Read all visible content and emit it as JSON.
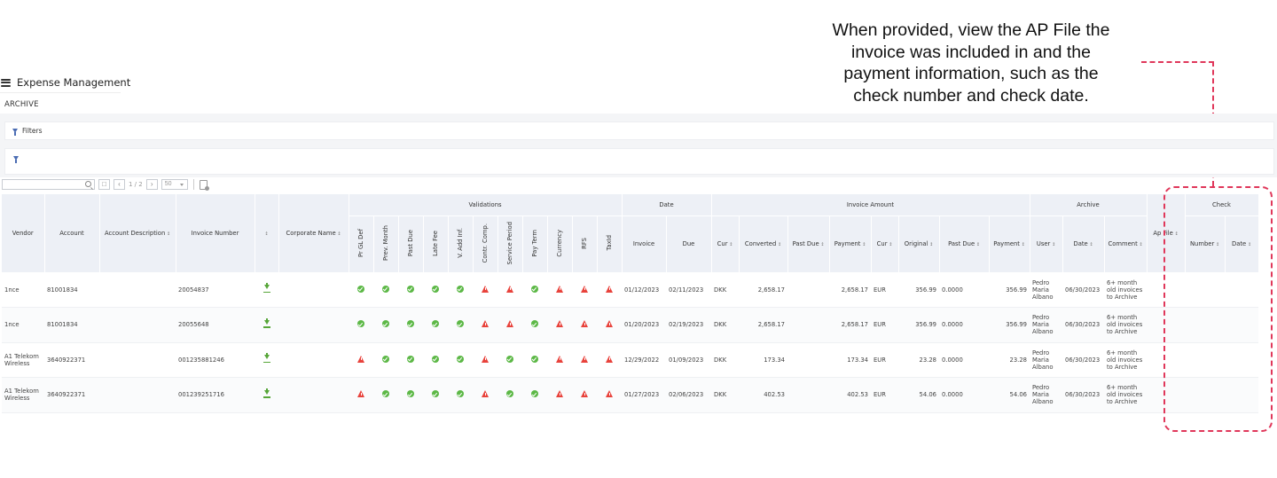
{
  "callout": {
    "lines": [
      "When provided, view the AP File the",
      "invoice was included in and the",
      "payment information, such as the",
      "check number and check date."
    ]
  },
  "app": {
    "title": "Expense Management",
    "section": "ARCHIVE"
  },
  "filters": {
    "label": "Filters"
  },
  "toolbar": {
    "page_info": "1 / 2",
    "page_size": "50"
  },
  "table": {
    "groups": {
      "validations": "Validations",
      "date": "Date",
      "invoice_amount": "Invoice Amount",
      "archive": "Archive",
      "check": "Check"
    },
    "headers": {
      "vendor": "Vendor",
      "account": "Account",
      "account_description": "Account Description",
      "invoice_number": "Invoice Number",
      "corporate_name": "Corporate Name",
      "v_pr_gl_def": "Pr GL Def",
      "v_prev_month": "Prev. Month",
      "v_past_due": "Past Due",
      "v_late_fee": "Late Fee",
      "v_add_inf": "V. Add Inf.",
      "v_contr_comp": "Contr. Comp.",
      "v_service_period": "Service Period",
      "v_pay_term": "Pay Term",
      "v_currency": "Currency",
      "v_rfs": "RFS",
      "v_taxid": "TaxId",
      "date_invoice": "Invoice",
      "date_due": "Due",
      "cur": "Cur",
      "converted": "Converted",
      "past_due": "Past Due",
      "payment": "Payment",
      "cur2": "Cur",
      "original": "Original",
      "past_due2": "Past Due",
      "payment2": "Payment",
      "user": "User",
      "archive_date": "Date",
      "comment": "Comment",
      "ap_file": "Ap File",
      "check_number": "Number",
      "check_date": "Date"
    },
    "rows": [
      {
        "vendor": "1nce",
        "account": "81001834",
        "account_description": "",
        "invoice_number": "20054837",
        "corporate_name": "",
        "validations": [
          "ok",
          "ok",
          "ok",
          "ok",
          "ok",
          "warn",
          "warn",
          "ok",
          "warn",
          "warn",
          "warn"
        ],
        "date_invoice": "01/12/2023",
        "date_due": "02/11/2023",
        "cur": "DKK",
        "converted": "2,658.17",
        "past_due": "",
        "payment": "2,658.17",
        "cur2": "EUR",
        "original": "356.99",
        "past_due2": "0.0000",
        "payment2": "356.99",
        "user": "Pedro Maria Albano",
        "archive_date": "06/30/2023",
        "comment": "6+ month old invoices to Archive",
        "ap_file": "",
        "check_number": "",
        "check_date": ""
      },
      {
        "vendor": "1nce",
        "account": "81001834",
        "account_description": "",
        "invoice_number": "20055648",
        "corporate_name": "",
        "validations": [
          "ok",
          "ok",
          "ok",
          "ok",
          "ok",
          "warn",
          "warn",
          "ok",
          "warn",
          "warn",
          "warn"
        ],
        "date_invoice": "01/20/2023",
        "date_due": "02/19/2023",
        "cur": "DKK",
        "converted": "2,658.17",
        "past_due": "",
        "payment": "2,658.17",
        "cur2": "EUR",
        "original": "356.99",
        "past_due2": "0.0000",
        "payment2": "356.99",
        "user": "Pedro Maria Albano",
        "archive_date": "06/30/2023",
        "comment": "6+ month old invoices to Archive",
        "ap_file": "",
        "check_number": "",
        "check_date": ""
      },
      {
        "vendor": "A1 Telekom Wireless",
        "account": "3640922371",
        "account_description": "",
        "invoice_number": "001235881246",
        "corporate_name": "",
        "validations": [
          "warn",
          "ok",
          "ok",
          "ok",
          "ok",
          "warn",
          "ok",
          "ok",
          "warn",
          "warn",
          "warn"
        ],
        "date_invoice": "12/29/2022",
        "date_due": "01/09/2023",
        "cur": "DKK",
        "converted": "173.34",
        "past_due": "",
        "payment": "173.34",
        "cur2": "EUR",
        "original": "23.28",
        "past_due2": "0.0000",
        "payment2": "23.28",
        "user": "Pedro Maria Albano",
        "archive_date": "06/30/2023",
        "comment": "6+ month old invoices to Archive",
        "ap_file": "",
        "check_number": "",
        "check_date": ""
      },
      {
        "vendor": "A1 Telekom Wireless",
        "account": "3640922371",
        "account_description": "",
        "invoice_number": "001239251716",
        "corporate_name": "",
        "validations": [
          "warn",
          "ok",
          "ok",
          "ok",
          "ok",
          "warn",
          "ok",
          "ok",
          "warn",
          "warn",
          "warn"
        ],
        "date_invoice": "01/27/2023",
        "date_due": "02/06/2023",
        "cur": "DKK",
        "converted": "402.53",
        "past_due": "",
        "payment": "402.53",
        "cur2": "EUR",
        "original": "54.06",
        "past_due2": "0.0000",
        "payment2": "54.06",
        "user": "Pedro Maria Albano",
        "archive_date": "06/30/2023",
        "comment": "6+ month old invoices to Archive",
        "ap_file": "",
        "check_number": "",
        "check_date": ""
      }
    ]
  },
  "colors": {
    "highlight": "#e0375a",
    "ok": "#5cb846",
    "warn": "#e8423b",
    "link": "#6d7fbf",
    "header_bg": "#edf0f6"
  }
}
